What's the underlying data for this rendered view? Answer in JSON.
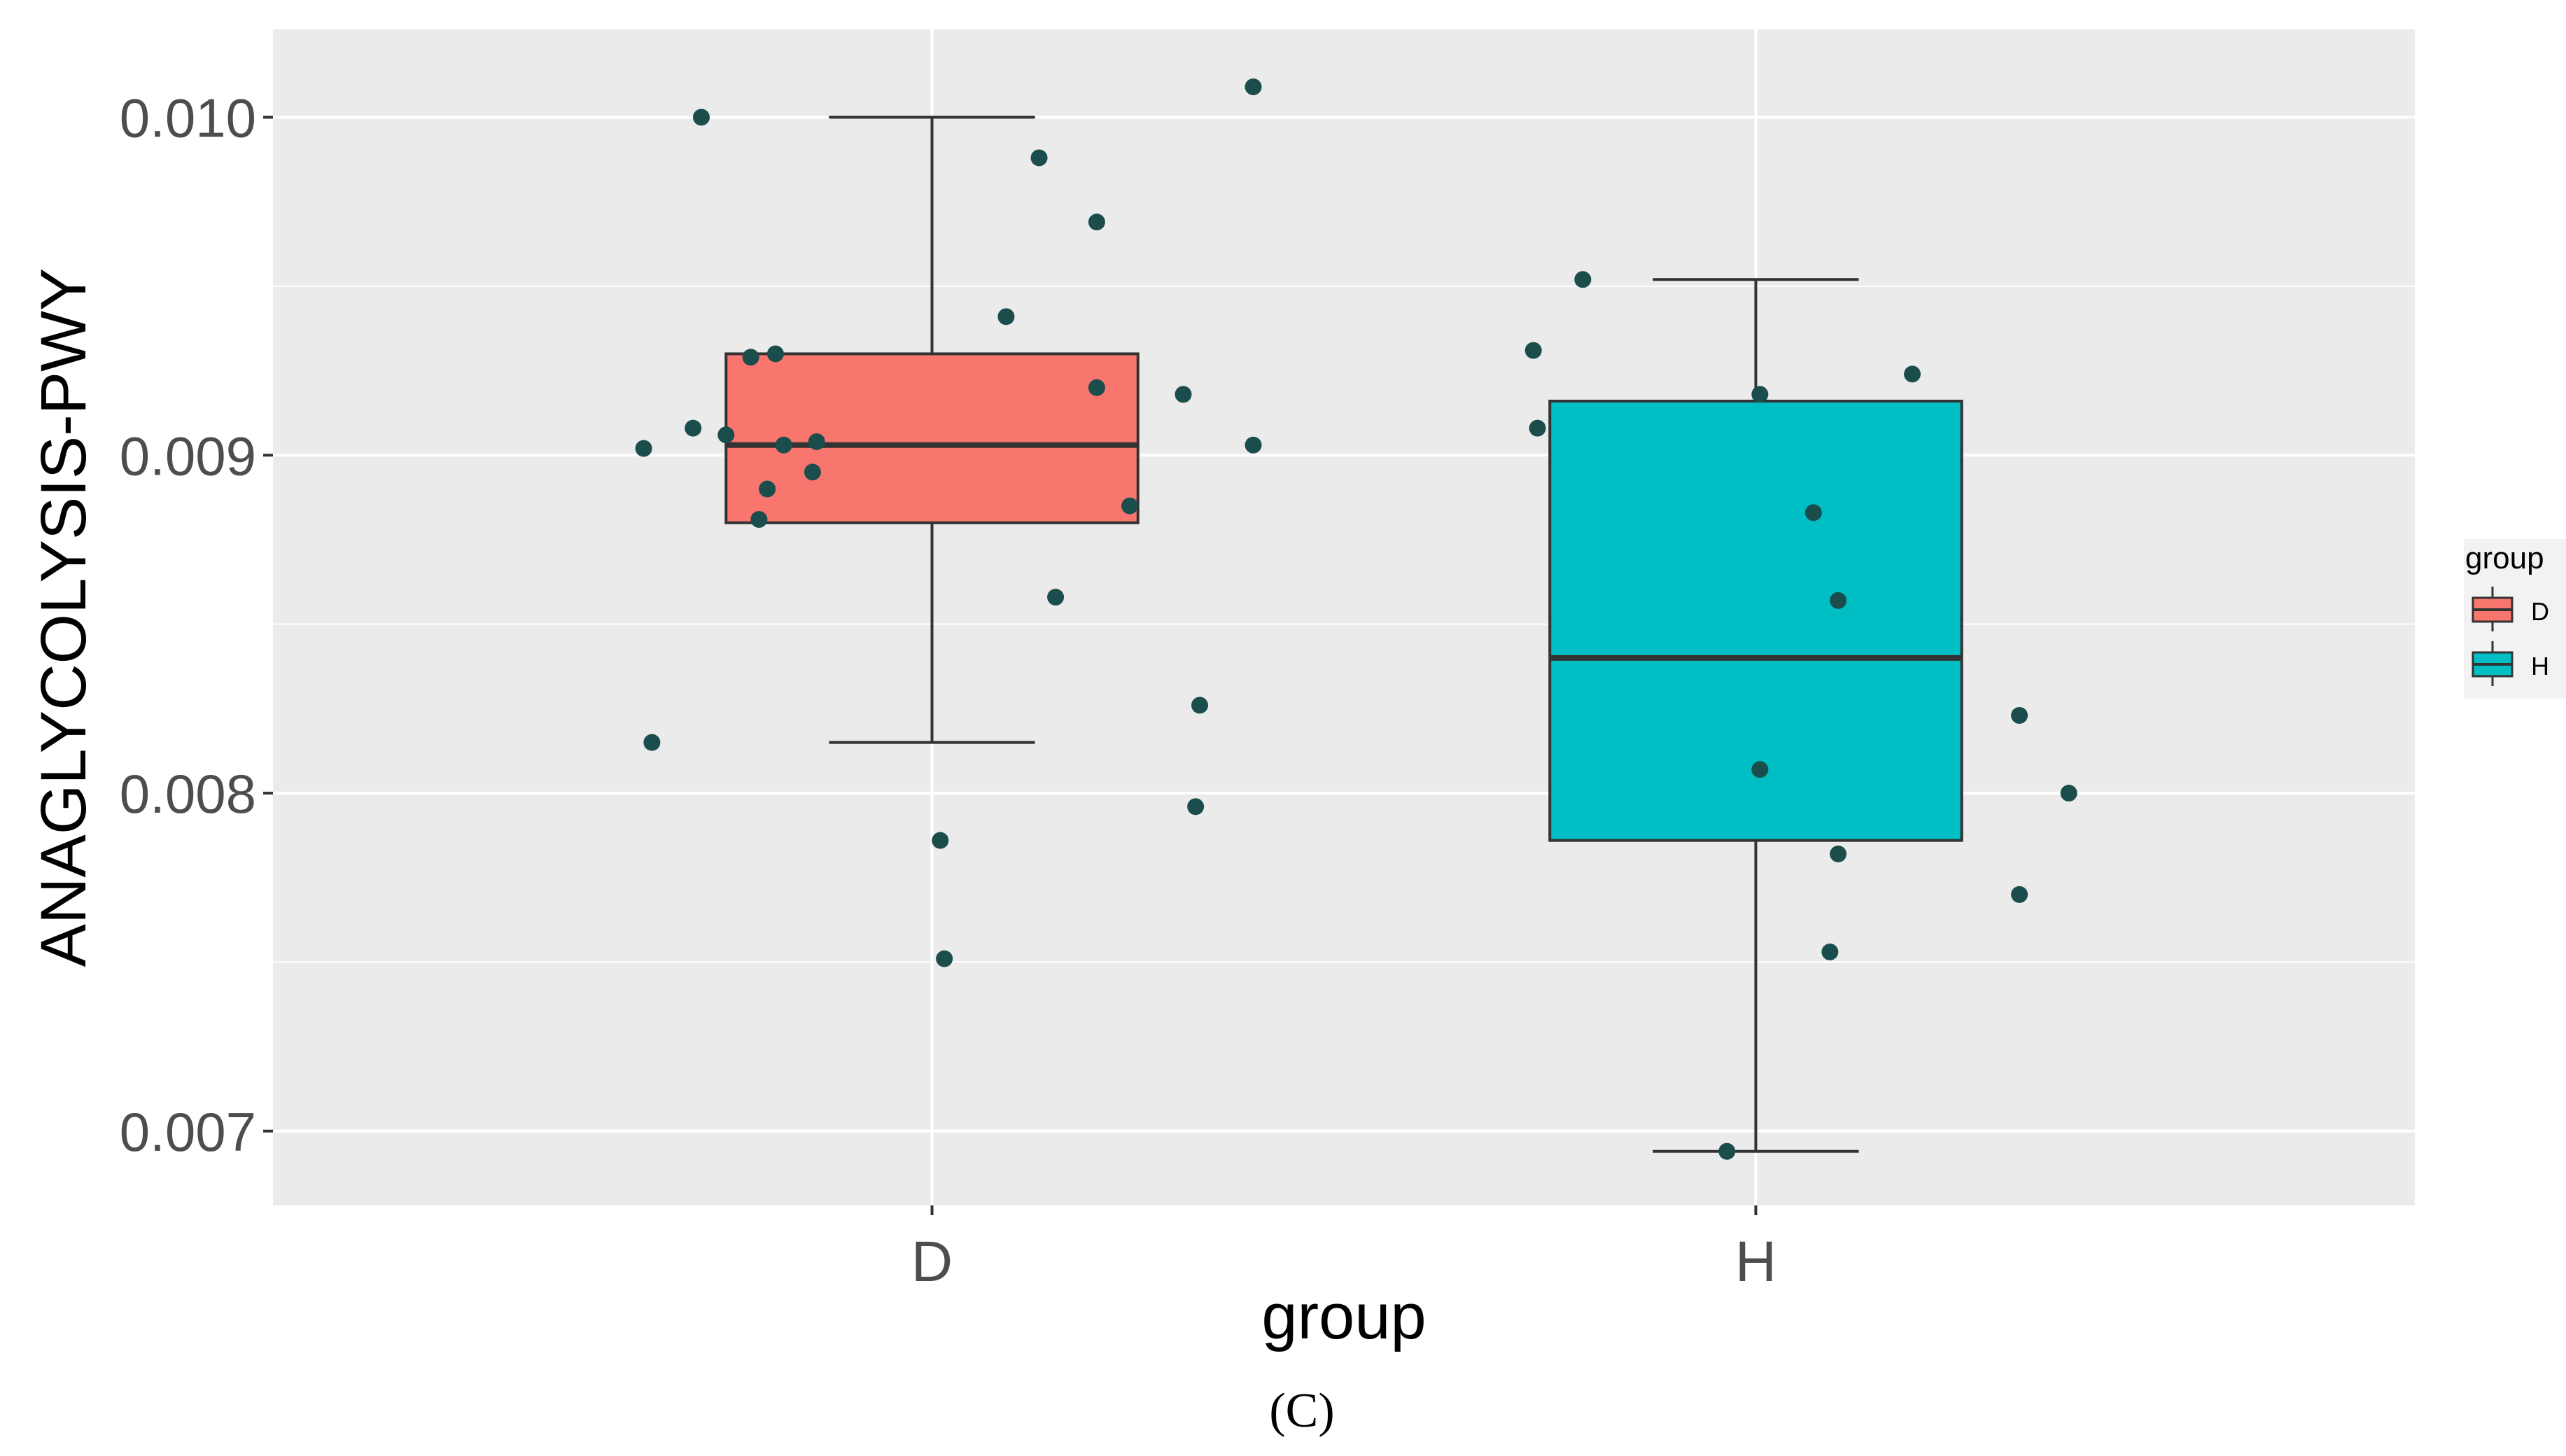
{
  "chart_data": {
    "type": "box",
    "xlabel": "group",
    "ylabel": "ANAGLYCOLYSIS-PWY",
    "caption": "(C)",
    "categories": [
      "D",
      "H"
    ],
    "yticks": [
      "0.007",
      "0.008",
      "0.009",
      "0.010"
    ],
    "ylim": [
      0.00678,
      0.01026
    ],
    "grid": true,
    "background": "#EBEBEB",
    "point_color": "#1B4D4D",
    "legend": {
      "title": "group",
      "placement": "right",
      "entries": [
        {
          "label": "D",
          "color": "#F8766D"
        },
        {
          "label": "H",
          "color": "#00BFC4"
        }
      ]
    },
    "boxes": [
      {
        "group": "D",
        "color": "#F8766D",
        "whisker_low": 0.00815,
        "q1": 0.0088,
        "median": 0.00903,
        "q3": 0.0093,
        "whisker_high": 0.01
      },
      {
        "group": "H",
        "color": "#00BFC4",
        "whisker_low": 0.00694,
        "q1": 0.00786,
        "median": 0.0084,
        "q3": 0.00916,
        "whisker_high": 0.00952
      }
    ],
    "points": [
      {
        "group": "D",
        "y": 0.01,
        "jitter": -0.28
      },
      {
        "group": "D",
        "y": 0.00902,
        "jitter": -0.35
      },
      {
        "group": "D",
        "y": 0.00908,
        "jitter": -0.29
      },
      {
        "group": "D",
        "y": 0.00906,
        "jitter": -0.25
      },
      {
        "group": "D",
        "y": 0.00929,
        "jitter": -0.22
      },
      {
        "group": "D",
        "y": 0.0093,
        "jitter": -0.19
      },
      {
        "group": "D",
        "y": 0.00903,
        "jitter": -0.18
      },
      {
        "group": "D",
        "y": 0.0089,
        "jitter": -0.2
      },
      {
        "group": "D",
        "y": 0.00881,
        "jitter": -0.21
      },
      {
        "group": "D",
        "y": 0.00895,
        "jitter": -0.145
      },
      {
        "group": "D",
        "y": 0.00904,
        "jitter": -0.14
      },
      {
        "group": "D",
        "y": 0.00815,
        "jitter": -0.34
      },
      {
        "group": "D",
        "y": 0.00786,
        "jitter": 0.01
      },
      {
        "group": "D",
        "y": 0.00751,
        "jitter": 0.015
      },
      {
        "group": "D",
        "y": 0.00941,
        "jitter": 0.09
      },
      {
        "group": "D",
        "y": 0.00988,
        "jitter": 0.13
      },
      {
        "group": "D",
        "y": 0.00969,
        "jitter": 0.2
      },
      {
        "group": "D",
        "y": 0.0092,
        "jitter": 0.2
      },
      {
        "group": "D",
        "y": 0.00858,
        "jitter": 0.15
      },
      {
        "group": "D",
        "y": 0.00885,
        "jitter": 0.24
      },
      {
        "group": "D",
        "y": 0.00918,
        "jitter": 0.305
      },
      {
        "group": "D",
        "y": 0.00826,
        "jitter": 0.325
      },
      {
        "group": "D",
        "y": 0.00796,
        "jitter": 0.32
      },
      {
        "group": "D",
        "y": 0.00903,
        "jitter": 0.39
      },
      {
        "group": "D",
        "y": 0.01009,
        "jitter": 0.39
      },
      {
        "group": "H",
        "y": 0.00952,
        "jitter": -0.21
      },
      {
        "group": "H",
        "y": 0.00931,
        "jitter": -0.27
      },
      {
        "group": "H",
        "y": 0.00908,
        "jitter": -0.265
      },
      {
        "group": "H",
        "y": 0.00918,
        "jitter": 0.005
      },
      {
        "group": "H",
        "y": 0.00807,
        "jitter": 0.005
      },
      {
        "group": "H",
        "y": 0.00694,
        "jitter": -0.035
      },
      {
        "group": "H",
        "y": 0.00883,
        "jitter": 0.07
      },
      {
        "group": "H",
        "y": 0.00857,
        "jitter": 0.1
      },
      {
        "group": "H",
        "y": 0.00782,
        "jitter": 0.1
      },
      {
        "group": "H",
        "y": 0.00753,
        "jitter": 0.09
      },
      {
        "group": "H",
        "y": 0.00924,
        "jitter": 0.19
      },
      {
        "group": "H",
        "y": 0.00823,
        "jitter": 0.32
      },
      {
        "group": "H",
        "y": 0.0077,
        "jitter": 0.32
      },
      {
        "group": "H",
        "y": 0.008,
        "jitter": 0.38
      }
    ]
  }
}
